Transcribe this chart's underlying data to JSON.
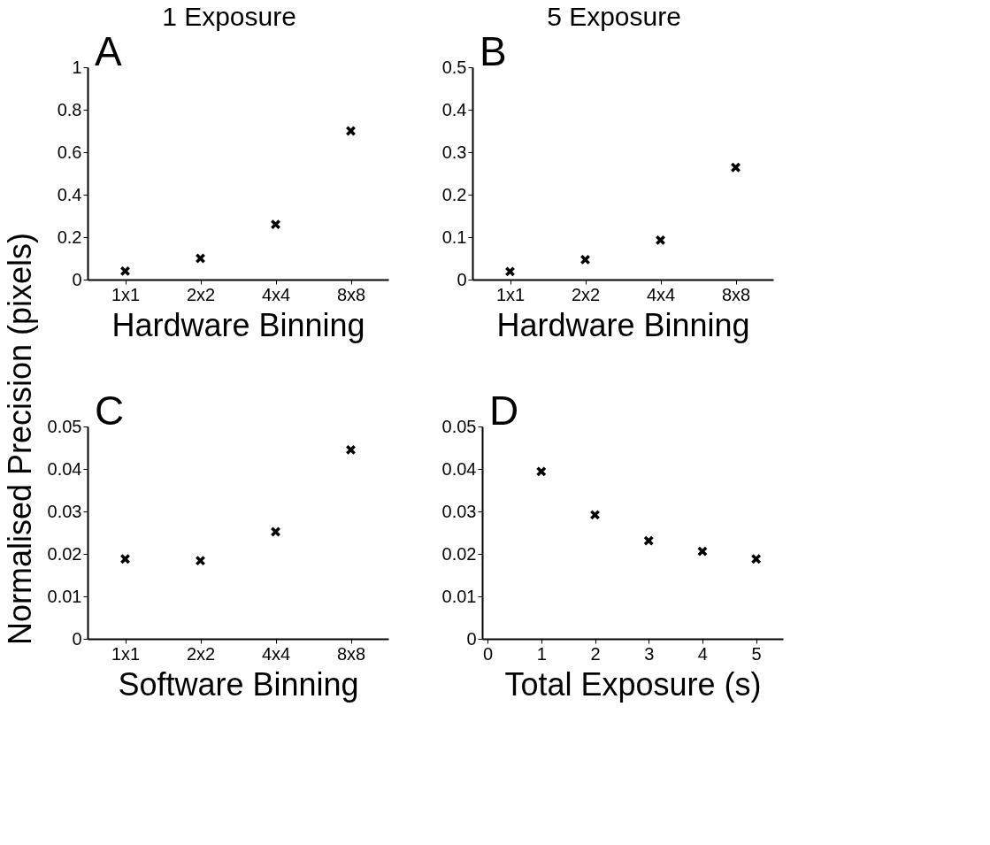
{
  "chart_data": [
    {
      "type": "scatter",
      "title": "1 Exposure",
      "ylabel": "Normalised Precision (pixels)",
      "xlabel": "Hardware Binning",
      "annotations": [
        "A"
      ],
      "categories": [
        "1x1",
        "2x2",
        "4x4",
        "8x8"
      ],
      "series": [
        {
          "color": "#000000",
          "values": [
            0.04,
            0.1,
            0.26,
            0.7
          ]
        }
      ],
      "ylim": [
        0,
        1
      ],
      "yticks": [
        0,
        0.2,
        0.4,
        0.6,
        0.8,
        1
      ],
      "marker": "cross",
      "grid": false
    },
    {
      "type": "scatter",
      "title": "5 Exposure",
      "xlabel": "Hardware Binning",
      "annotations": [
        "B"
      ],
      "categories": [
        "1x1",
        "2x2",
        "4x4",
        "8x8"
      ],
      "series": [
        {
          "color": "#000000",
          "values": [
            0.019,
            0.047,
            0.093,
            0.264
          ]
        }
      ],
      "ylim": [
        0,
        0.5
      ],
      "yticks": [
        0,
        0.1,
        0.2,
        0.3,
        0.4,
        0.5
      ],
      "marker": "cross",
      "grid": false
    },
    {
      "type": "scatter",
      "xlabel": "Software Binning",
      "annotations": [
        "C"
      ],
      "categories": [
        "1x1",
        "2x2",
        "4x4",
        "8x8"
      ],
      "series": [
        {
          "color": "#000000",
          "values": [
            0.0188,
            0.0184,
            0.0252,
            0.0445
          ]
        }
      ],
      "ylim": [
        0,
        0.05
      ],
      "yticks": [
        0,
        0.01,
        0.02,
        0.03,
        0.04,
        0.05
      ],
      "marker": "cross",
      "grid": false
    },
    {
      "type": "scatter",
      "xlabel": "Total Exposure (s)",
      "annotations": [
        "D"
      ],
      "x": [
        1,
        2,
        3,
        4,
        5
      ],
      "series": [
        {
          "color": "#000000",
          "values": [
            0.0394,
            0.0292,
            0.0231,
            0.0206,
            0.0188
          ]
        }
      ],
      "xlim": [
        -0.1,
        5.5
      ],
      "xticks": [
        0,
        1,
        2,
        3,
        4,
        5
      ],
      "ylim": [
        0,
        0.05
      ],
      "yticks": [
        0,
        0.01,
        0.02,
        0.03,
        0.04,
        0.05
      ],
      "marker": "cross",
      "grid": false
    }
  ]
}
